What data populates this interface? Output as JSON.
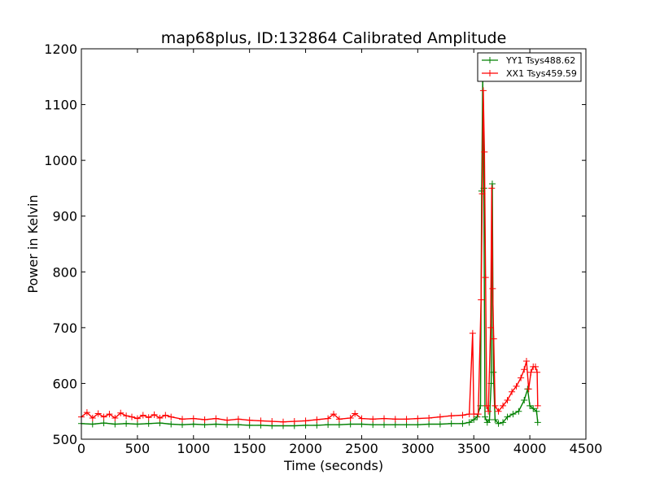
{
  "chart_data": {
    "type": "line",
    "title": "map68plus, ID:132864 Calibrated Amplitude",
    "xlabel": "Time (seconds)",
    "ylabel": "Power in Kelvin",
    "xlim": [
      0,
      4500
    ],
    "ylim": [
      500,
      1200
    ],
    "x_ticks": [
      "0",
      "500",
      "1000",
      "1500",
      "2000",
      "2500",
      "3000",
      "3500",
      "4000",
      "4500"
    ],
    "y_ticks": [
      "500",
      "600",
      "700",
      "800",
      "900",
      "1000",
      "1100",
      "1200"
    ],
    "legend_position": "top-right",
    "marker": "+",
    "grid": false,
    "series": [
      {
        "name": "YY1 Tsys488.62",
        "color": "#008000",
        "points": [
          [
            0,
            528
          ],
          [
            100,
            527
          ],
          [
            200,
            529
          ],
          [
            300,
            527
          ],
          [
            400,
            528
          ],
          [
            500,
            527
          ],
          [
            600,
            528
          ],
          [
            700,
            529
          ],
          [
            800,
            527
          ],
          [
            900,
            526
          ],
          [
            1000,
            527
          ],
          [
            1100,
            526
          ],
          [
            1200,
            527
          ],
          [
            1300,
            526
          ],
          [
            1400,
            526
          ],
          [
            1500,
            525
          ],
          [
            1600,
            525
          ],
          [
            1700,
            524
          ],
          [
            1800,
            524
          ],
          [
            1900,
            524
          ],
          [
            2000,
            525
          ],
          [
            2100,
            525
          ],
          [
            2200,
            526
          ],
          [
            2300,
            526
          ],
          [
            2400,
            527
          ],
          [
            2500,
            527
          ],
          [
            2600,
            526
          ],
          [
            2700,
            526
          ],
          [
            2800,
            526
          ],
          [
            2900,
            526
          ],
          [
            3000,
            526
          ],
          [
            3100,
            527
          ],
          [
            3200,
            527
          ],
          [
            3300,
            528
          ],
          [
            3400,
            528
          ],
          [
            3460,
            530
          ],
          [
            3500,
            535
          ],
          [
            3530,
            540
          ],
          [
            3560,
            560
          ],
          [
            3570,
            945
          ],
          [
            3580,
            1145
          ],
          [
            3590,
            950
          ],
          [
            3600,
            540
          ],
          [
            3620,
            530
          ],
          [
            3640,
            535
          ],
          [
            3655,
            600
          ],
          [
            3665,
            958
          ],
          [
            3675,
            620
          ],
          [
            3690,
            535
          ],
          [
            3720,
            528
          ],
          [
            3760,
            530
          ],
          [
            3800,
            540
          ],
          [
            3850,
            545
          ],
          [
            3900,
            550
          ],
          [
            3950,
            570
          ],
          [
            3980,
            590
          ],
          [
            4000,
            560
          ],
          [
            4030,
            555
          ],
          [
            4060,
            550
          ],
          [
            4070,
            530
          ]
        ]
      },
      {
        "name": "XX1 Tsys459.59",
        "color": "#ff0000",
        "points": [
          [
            0,
            540
          ],
          [
            50,
            548
          ],
          [
            100,
            538
          ],
          [
            150,
            546
          ],
          [
            200,
            540
          ],
          [
            250,
            545
          ],
          [
            300,
            538
          ],
          [
            350,
            547
          ],
          [
            400,
            542
          ],
          [
            450,
            540
          ],
          [
            500,
            537
          ],
          [
            550,
            543
          ],
          [
            600,
            539
          ],
          [
            650,
            544
          ],
          [
            700,
            538
          ],
          [
            750,
            543
          ],
          [
            800,
            540
          ],
          [
            900,
            536
          ],
          [
            1000,
            537
          ],
          [
            1100,
            535
          ],
          [
            1200,
            537
          ],
          [
            1300,
            534
          ],
          [
            1400,
            536
          ],
          [
            1500,
            534
          ],
          [
            1600,
            533
          ],
          [
            1700,
            532
          ],
          [
            1800,
            531
          ],
          [
            1900,
            532
          ],
          [
            2000,
            533
          ],
          [
            2100,
            535
          ],
          [
            2200,
            537
          ],
          [
            2250,
            545
          ],
          [
            2300,
            536
          ],
          [
            2400,
            538
          ],
          [
            2440,
            546
          ],
          [
            2500,
            537
          ],
          [
            2600,
            536
          ],
          [
            2700,
            537
          ],
          [
            2800,
            536
          ],
          [
            2900,
            536
          ],
          [
            3000,
            537
          ],
          [
            3100,
            538
          ],
          [
            3200,
            540
          ],
          [
            3300,
            542
          ],
          [
            3400,
            543
          ],
          [
            3460,
            545
          ],
          [
            3490,
            690
          ],
          [
            3500,
            545
          ],
          [
            3540,
            545
          ],
          [
            3565,
            750
          ],
          [
            3575,
            940
          ],
          [
            3585,
            1125
          ],
          [
            3595,
            1015
          ],
          [
            3605,
            790
          ],
          [
            3615,
            560
          ],
          [
            3630,
            550
          ],
          [
            3650,
            700
          ],
          [
            3660,
            950
          ],
          [
            3668,
            770
          ],
          [
            3678,
            680
          ],
          [
            3690,
            560
          ],
          [
            3720,
            550
          ],
          [
            3760,
            560
          ],
          [
            3800,
            570
          ],
          [
            3840,
            585
          ],
          [
            3880,
            595
          ],
          [
            3920,
            610
          ],
          [
            3950,
            625
          ],
          [
            3970,
            640
          ],
          [
            3990,
            590
          ],
          [
            4010,
            620
          ],
          [
            4030,
            630
          ],
          [
            4050,
            630
          ],
          [
            4065,
            620
          ],
          [
            4070,
            560
          ]
        ]
      }
    ]
  }
}
